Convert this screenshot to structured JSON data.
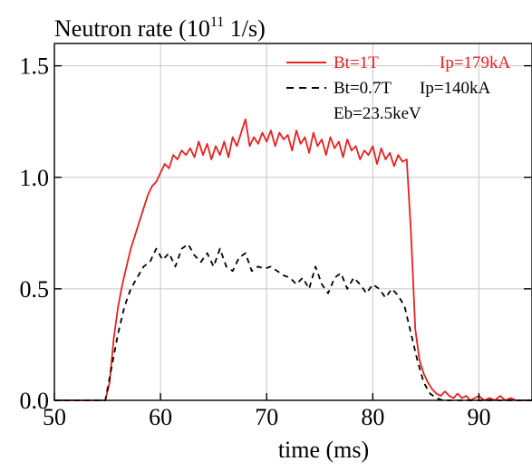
{
  "chart_data": {
    "type": "line",
    "title": "Neutron rate (10^11 1/s)",
    "title_parts": {
      "prefix": "Neutron rate (10",
      "sup": "11",
      "suffix": " 1/s)"
    },
    "xlabel": "time (ms)",
    "ylabel": "",
    "xlim": [
      50,
      95
    ],
    "ylim": [
      0,
      1.6
    ],
    "x_ticks": [
      50,
      60,
      70,
      80,
      90
    ],
    "x_tick_labels": [
      "50",
      "60",
      "70",
      "80",
      "90"
    ],
    "y_ticks": [
      0,
      0.5,
      1.0,
      1.5
    ],
    "y_tick_labels": [
      "0.0",
      "0.5",
      "1.0",
      "1.5"
    ],
    "grid": true,
    "legend_position": "top-right",
    "extra_label": "Eb=23.5keV",
    "series": [
      {
        "name": "Bt=1T    Ip=179kA",
        "name_parts": [
          "Bt=1T",
          "Ip=179kA"
        ],
        "color": "#e8201e",
        "style": "solid",
        "x": [
          50,
          54.8,
          55.2,
          55.6,
          56.0,
          56.4,
          56.8,
          57.2,
          57.6,
          58.0,
          58.4,
          58.8,
          59.2,
          59.6,
          60.0,
          60.4,
          60.8,
          61.2,
          61.6,
          62.0,
          62.4,
          62.8,
          63.2,
          63.6,
          64.0,
          64.4,
          64.8,
          65.2,
          65.6,
          66.0,
          66.4,
          66.8,
          67.2,
          67.6,
          68.0,
          68.4,
          68.8,
          69.2,
          69.6,
          70.0,
          70.4,
          70.8,
          71.2,
          71.6,
          72.0,
          72.4,
          72.8,
          73.2,
          73.6,
          74.0,
          74.4,
          74.8,
          75.2,
          75.6,
          76.0,
          76.4,
          76.8,
          77.2,
          77.6,
          78.0,
          78.4,
          78.8,
          79.2,
          79.6,
          80.0,
          80.4,
          80.8,
          81.2,
          81.6,
          82.0,
          82.4,
          82.8,
          83.2,
          83.6,
          84.0,
          84.4,
          84.8,
          85.2,
          85.6,
          86.0,
          86.4,
          86.8,
          87.2,
          87.6,
          88.0,
          88.4,
          88.8,
          89.2,
          89.6,
          90.0,
          90.5,
          91.0,
          91.5,
          92.0,
          92.5,
          93.0,
          93.5,
          94.0,
          95.0
        ],
        "values": [
          0.0,
          0.0,
          0.08,
          0.28,
          0.42,
          0.52,
          0.6,
          0.68,
          0.74,
          0.8,
          0.86,
          0.92,
          0.96,
          0.98,
          1.02,
          1.06,
          1.04,
          1.1,
          1.08,
          1.12,
          1.1,
          1.13,
          1.09,
          1.16,
          1.1,
          1.15,
          1.08,
          1.14,
          1.1,
          1.16,
          1.09,
          1.18,
          1.14,
          1.2,
          1.26,
          1.14,
          1.18,
          1.15,
          1.2,
          1.16,
          1.21,
          1.14,
          1.2,
          1.17,
          1.19,
          1.12,
          1.21,
          1.15,
          1.18,
          1.11,
          1.2,
          1.14,
          1.17,
          1.1,
          1.18,
          1.13,
          1.16,
          1.09,
          1.17,
          1.12,
          1.14,
          1.08,
          1.12,
          1.1,
          1.14,
          1.06,
          1.13,
          1.08,
          1.11,
          1.05,
          1.1,
          1.07,
          1.08,
          0.75,
          0.32,
          0.18,
          0.12,
          0.08,
          0.05,
          0.03,
          0.02,
          0.04,
          0.02,
          0.01,
          0.03,
          0.01,
          0.02,
          0.0,
          0.01,
          0.02,
          0.0,
          0.01,
          0.0,
          0.02,
          0.0,
          0.01,
          0.0,
          0.0,
          0.0
        ]
      },
      {
        "name": "Bt=0.7T  Ip=140kA",
        "name_parts": [
          "Bt=0.7T",
          "Ip=140kA"
        ],
        "color": "#000000",
        "style": "dashed",
        "x": [
          50,
          54.8,
          55.4,
          56.0,
          56.6,
          57.2,
          57.8,
          58.4,
          59.0,
          59.6,
          60.2,
          60.8,
          61.4,
          62.0,
          62.6,
          63.2,
          63.8,
          64.4,
          65.0,
          65.6,
          66.2,
          66.8,
          67.4,
          68.0,
          68.6,
          69.2,
          69.8,
          70.4,
          71.0,
          71.6,
          72.2,
          72.8,
          73.4,
          74.0,
          74.6,
          75.2,
          75.8,
          76.4,
          77.0,
          77.6,
          78.2,
          78.8,
          79.4,
          80.0,
          80.6,
          81.2,
          81.8,
          82.4,
          83.0,
          83.6,
          84.2,
          84.8,
          85.4,
          86.0,
          86.6,
          87.2,
          88.0,
          95.0
        ],
        "values": [
          0.0,
          0.0,
          0.15,
          0.3,
          0.42,
          0.5,
          0.55,
          0.6,
          0.62,
          0.68,
          0.63,
          0.66,
          0.6,
          0.68,
          0.7,
          0.65,
          0.62,
          0.66,
          0.6,
          0.68,
          0.6,
          0.58,
          0.64,
          0.66,
          0.58,
          0.6,
          0.59,
          0.6,
          0.58,
          0.56,
          0.55,
          0.52,
          0.55,
          0.5,
          0.6,
          0.52,
          0.48,
          0.55,
          0.57,
          0.5,
          0.55,
          0.52,
          0.48,
          0.52,
          0.5,
          0.46,
          0.5,
          0.47,
          0.42,
          0.3,
          0.18,
          0.08,
          0.03,
          0.01,
          0.0,
          0.0,
          0.0,
          0.0
        ]
      }
    ]
  }
}
